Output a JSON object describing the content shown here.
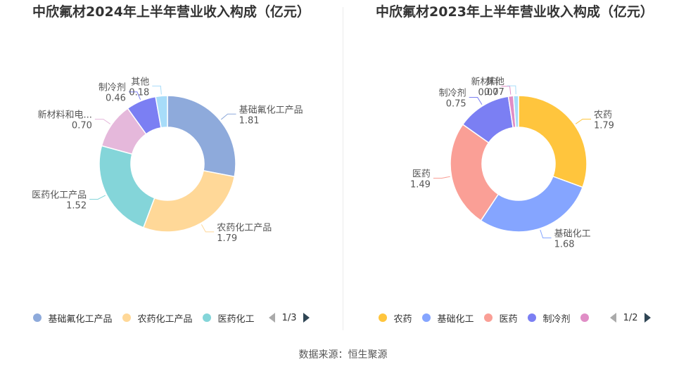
{
  "chart_data": [
    {
      "type": "pie",
      "title": "中欣氟材2024年上半年营业收入构成（亿元）",
      "categories": [
        "基础氟化工产品",
        "农药化工产品",
        "医药化工产品",
        "新材料和电...",
        "制冷剂",
        "其他"
      ],
      "values": [
        1.81,
        1.79,
        1.52,
        0.7,
        0.46,
        0.18
      ],
      "value_labels": [
        "1.81",
        "1.79",
        "1.52",
        "0.70",
        "0.46",
        "0.18"
      ],
      "colors": [
        "#8eaadb",
        "#ffd898",
        "#84d5d9",
        "#e5b8db",
        "#7b7ff3",
        "#a7dcf9"
      ],
      "legend": {
        "placement": "bottom",
        "items": [
          "基础氟化工产品",
          "农药化工产品",
          "医药化工"
        ],
        "page": "1/3"
      }
    },
    {
      "type": "pie",
      "title": "中欣氟材2023年上半年营业收入构成（亿元）",
      "categories": [
        "农药",
        "基础化工",
        "医药",
        "制冷剂",
        "新材料",
        "其他"
      ],
      "values": [
        1.79,
        1.68,
        1.49,
        0.75,
        0.07,
        0.07
      ],
      "value_labels": [
        "1.79",
        "1.68",
        "1.49",
        "0.75",
        "0.07",
        "0.07"
      ],
      "colors": [
        "#ffc53d",
        "#85a5ff",
        "#fa9f96",
        "#7b7ff3",
        "#e08ec6",
        "#a7dcf9"
      ],
      "legend": {
        "placement": "bottom",
        "items": [
          "农药",
          "基础化工",
          "医药",
          "制冷剂",
          ""
        ],
        "page": "1/2"
      }
    }
  ],
  "footer": {
    "source": "数据来源：恒生聚源"
  }
}
